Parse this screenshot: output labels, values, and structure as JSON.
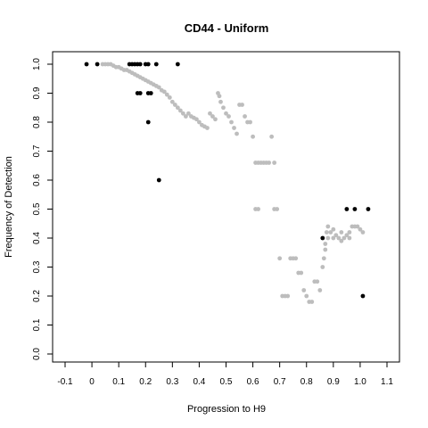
{
  "chart_data": {
    "type": "scatter",
    "title": "CD44 - Uniform",
    "xlabel": "Progression to H9",
    "ylabel": "Frequency of Detection",
    "xlim": [
      -0.1,
      1.1
    ],
    "ylim": [
      0.0,
      1.0
    ],
    "xticks": [
      "-0.1",
      "0",
      "0.1",
      "0.2",
      "0.3",
      "0.4",
      "0.5",
      "0.6",
      "0.7",
      "0.8",
      "0.9",
      "1.0",
      "1.1"
    ],
    "xtick_values": [
      -0.1,
      0.0,
      0.1,
      0.2,
      0.3,
      0.4,
      0.5,
      0.6,
      0.7,
      0.8,
      0.9,
      1.0,
      1.1
    ],
    "yticks": [
      "0.0",
      "0.1",
      "0.2",
      "0.3",
      "0.4",
      "0.5",
      "0.6",
      "0.7",
      "0.8",
      "0.9",
      "1.0"
    ],
    "ytick_values": [
      0.0,
      0.1,
      0.2,
      0.3,
      0.4,
      0.5,
      0.6,
      0.7,
      0.8,
      0.9,
      1.0
    ],
    "grid": false,
    "series": [
      {
        "color": "#bdbdbd",
        "points": [
          [
            0.04,
            1.0
          ],
          [
            0.05,
            1.0
          ],
          [
            0.06,
            1.0
          ],
          [
            0.07,
            1.0
          ],
          [
            0.08,
            0.995
          ],
          [
            0.09,
            0.99
          ],
          [
            0.1,
            0.99
          ],
          [
            0.11,
            0.985
          ],
          [
            0.12,
            0.98
          ],
          [
            0.13,
            0.98
          ],
          [
            0.14,
            0.975
          ],
          [
            0.15,
            0.97
          ],
          [
            0.16,
            0.965
          ],
          [
            0.17,
            0.96
          ],
          [
            0.18,
            0.955
          ],
          [
            0.19,
            0.95
          ],
          [
            0.2,
            0.945
          ],
          [
            0.21,
            0.94
          ],
          [
            0.22,
            0.935
          ],
          [
            0.23,
            0.93
          ],
          [
            0.24,
            0.925
          ],
          [
            0.25,
            0.92
          ],
          [
            0.26,
            0.91
          ],
          [
            0.27,
            0.905
          ],
          [
            0.28,
            0.895
          ],
          [
            0.29,
            0.885
          ],
          [
            0.3,
            0.87
          ],
          [
            0.31,
            0.86
          ],
          [
            0.32,
            0.85
          ],
          [
            0.33,
            0.84
          ],
          [
            0.34,
            0.83
          ],
          [
            0.35,
            0.82
          ],
          [
            0.36,
            0.83
          ],
          [
            0.37,
            0.82
          ],
          [
            0.38,
            0.815
          ],
          [
            0.39,
            0.81
          ],
          [
            0.4,
            0.8
          ],
          [
            0.41,
            0.79
          ],
          [
            0.42,
            0.785
          ],
          [
            0.43,
            0.78
          ],
          [
            0.44,
            0.83
          ],
          [
            0.45,
            0.82
          ],
          [
            0.46,
            0.81
          ],
          [
            0.47,
            0.9
          ],
          [
            0.475,
            0.89
          ],
          [
            0.48,
            0.87
          ],
          [
            0.49,
            0.85
          ],
          [
            0.5,
            0.83
          ],
          [
            0.51,
            0.82
          ],
          [
            0.52,
            0.8
          ],
          [
            0.53,
            0.78
          ],
          [
            0.54,
            0.76
          ],
          [
            0.55,
            0.86
          ],
          [
            0.56,
            0.86
          ],
          [
            0.57,
            0.82
          ],
          [
            0.58,
            0.8
          ],
          [
            0.59,
            0.8
          ],
          [
            0.6,
            0.75
          ],
          [
            0.61,
            0.66
          ],
          [
            0.62,
            0.66
          ],
          [
            0.63,
            0.66
          ],
          [
            0.64,
            0.66
          ],
          [
            0.65,
            0.66
          ],
          [
            0.66,
            0.66
          ],
          [
            0.67,
            0.75
          ],
          [
            0.68,
            0.66
          ],
          [
            0.61,
            0.5
          ],
          [
            0.62,
            0.5
          ],
          [
            0.68,
            0.5
          ],
          [
            0.69,
            0.5
          ],
          [
            0.7,
            0.33
          ],
          [
            0.71,
            0.2
          ],
          [
            0.72,
            0.2
          ],
          [
            0.73,
            0.2
          ],
          [
            0.74,
            0.33
          ],
          [
            0.75,
            0.33
          ],
          [
            0.76,
            0.33
          ],
          [
            0.77,
            0.28
          ],
          [
            0.78,
            0.28
          ],
          [
            0.79,
            0.22
          ],
          [
            0.8,
            0.2
          ],
          [
            0.81,
            0.18
          ],
          [
            0.82,
            0.18
          ],
          [
            0.83,
            0.25
          ],
          [
            0.84,
            0.25
          ],
          [
            0.85,
            0.22
          ],
          [
            0.86,
            0.3
          ],
          [
            0.865,
            0.33
          ],
          [
            0.87,
            0.38
          ],
          [
            0.875,
            0.42
          ],
          [
            0.88,
            0.44
          ],
          [
            0.89,
            0.42
          ],
          [
            0.9,
            0.4
          ],
          [
            0.91,
            0.41
          ],
          [
            0.92,
            0.4
          ],
          [
            0.93,
            0.39
          ],
          [
            0.94,
            0.4
          ],
          [
            0.95,
            0.41
          ],
          [
            0.96,
            0.42
          ],
          [
            0.97,
            0.44
          ],
          [
            0.98,
            0.44
          ],
          [
            0.99,
            0.44
          ],
          [
            1.0,
            0.43
          ],
          [
            1.01,
            0.42
          ],
          [
            0.87,
            0.36
          ],
          [
            0.88,
            0.4
          ],
          [
            0.9,
            0.43
          ],
          [
            0.93,
            0.42
          ],
          [
            0.96,
            0.4
          ]
        ]
      },
      {
        "color": "#000000",
        "points": [
          [
            -0.02,
            1.0
          ],
          [
            0.02,
            1.0
          ],
          [
            0.14,
            1.0
          ],
          [
            0.15,
            1.0
          ],
          [
            0.16,
            1.0
          ],
          [
            0.17,
            1.0
          ],
          [
            0.18,
            1.0
          ],
          [
            0.2,
            1.0
          ],
          [
            0.21,
            1.0
          ],
          [
            0.24,
            1.0
          ],
          [
            0.32,
            1.0
          ],
          [
            0.17,
            0.9
          ],
          [
            0.18,
            0.9
          ],
          [
            0.21,
            0.9
          ],
          [
            0.22,
            0.9
          ],
          [
            0.21,
            0.8
          ],
          [
            0.25,
            0.6
          ],
          [
            0.86,
            0.4
          ],
          [
            0.95,
            0.5
          ],
          [
            0.98,
            0.5
          ],
          [
            1.03,
            0.5
          ],
          [
            1.01,
            0.2
          ]
        ]
      }
    ]
  }
}
